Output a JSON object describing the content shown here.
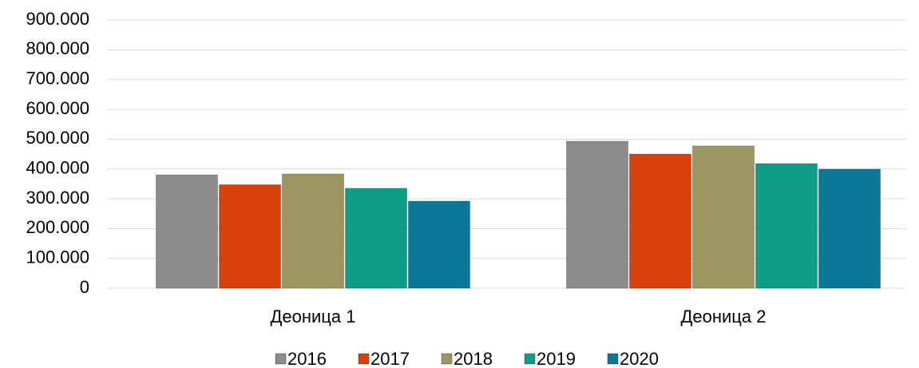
{
  "chart_data": {
    "type": "bar",
    "categories": [
      "Деоница 1",
      "Деоница 2"
    ],
    "series": [
      {
        "name": "2016",
        "color": "#8c8c8c",
        "values": [
          380000,
          493000
        ]
      },
      {
        "name": "2017",
        "color": "#d9400a",
        "values": [
          347000,
          450000
        ]
      },
      {
        "name": "2018",
        "color": "#9e9660",
        "values": [
          383000,
          477000
        ]
      },
      {
        "name": "2019",
        "color": "#0e9e88",
        "values": [
          335000,
          418000
        ]
      },
      {
        "name": "2020",
        "color": "#0a7896",
        "values": [
          292000,
          399000
        ]
      }
    ],
    "ylim": [
      0,
      900000
    ],
    "yticks": [
      0,
      {
        "value": 100000,
        "label": "100.000"
      },
      {
        "value": 200000,
        "label": "200.000"
      },
      {
        "value": 300000,
        "label": "300.000"
      },
      {
        "value": 400000,
        "label": "400.000"
      },
      {
        "value": 500000,
        "label": "500.000"
      },
      {
        "value": 600000,
        "label": "600.000"
      },
      {
        "value": 700000,
        "label": "700.000"
      },
      {
        "value": 800000,
        "label": "800.000"
      },
      {
        "value": 900000,
        "label": "900.000"
      }
    ],
    "grid": true,
    "legend": "bottom"
  }
}
